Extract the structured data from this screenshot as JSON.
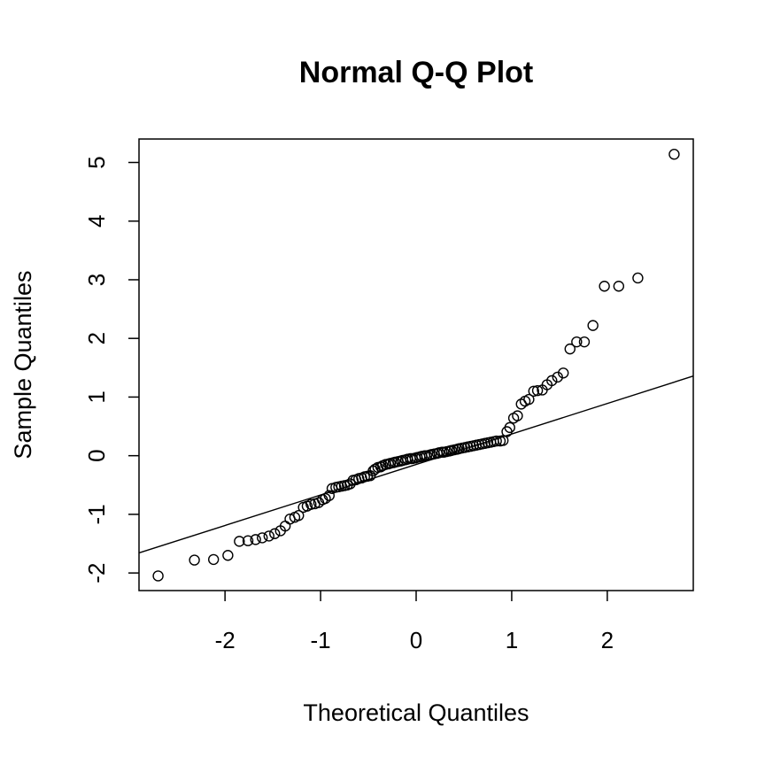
{
  "chart_data": {
    "type": "scatter",
    "title": "Normal Q-Q Plot",
    "xlabel": "Theoretical Quantiles",
    "ylabel": "Sample Quantiles",
    "xlim": [
      -2.9,
      2.9
    ],
    "ylim": [
      -2.3,
      5.4
    ],
    "xticks": [
      -2,
      -1,
      0,
      1,
      2
    ],
    "xtick_labels": [
      "-2",
      "-1",
      "0",
      "1",
      "2"
    ],
    "yticks": [
      -2,
      -1,
      0,
      1,
      2,
      3,
      4,
      5
    ],
    "ytick_labels": [
      "-2",
      "-1",
      "0",
      "1",
      "2",
      "3",
      "4",
      "5"
    ],
    "grid": false,
    "reference_line": {
      "slope": 0.52,
      "intercept": -0.15
    },
    "points": {
      "x": [
        -2.7,
        -2.32,
        -2.12,
        -1.97,
        -1.85,
        -1.76,
        -1.68,
        -1.61,
        -1.54,
        -1.48,
        -1.42,
        -1.37,
        -1.32,
        -1.27,
        -1.23,
        -1.18,
        -1.14,
        -1.1,
        -1.06,
        -1.02,
        -0.98,
        -0.95,
        -0.91,
        -0.88,
        -0.84,
        -0.81,
        -0.78,
        -0.75,
        -0.72,
        -0.69,
        -0.66,
        -0.63,
        -0.6,
        -0.57,
        -0.54,
        -0.51,
        -0.48,
        -0.45,
        -0.43,
        -0.4,
        -0.37,
        -0.35,
        -0.32,
        -0.29,
        -0.27,
        -0.24,
        -0.22,
        -0.19,
        -0.16,
        -0.14,
        -0.11,
        -0.09,
        -0.06,
        -0.04,
        -0.01,
        0.01,
        0.04,
        0.06,
        0.09,
        0.11,
        0.14,
        0.16,
        0.19,
        0.22,
        0.24,
        0.27,
        0.29,
        0.32,
        0.35,
        0.37,
        0.4,
        0.43,
        0.45,
        0.48,
        0.51,
        0.54,
        0.57,
        0.6,
        0.63,
        0.66,
        0.69,
        0.72,
        0.75,
        0.78,
        0.81,
        0.84,
        0.88,
        0.91,
        0.95,
        0.98,
        1.02,
        1.06,
        1.1,
        1.14,
        1.18,
        1.23,
        1.27,
        1.32,
        1.37,
        1.42,
        1.48,
        1.54,
        1.61,
        1.68,
        1.76,
        1.85,
        1.97,
        2.12,
        2.32,
        2.7
      ],
      "y": [
        -2.05,
        -1.78,
        -1.77,
        -1.7,
        -1.46,
        -1.45,
        -1.43,
        -1.4,
        -1.37,
        -1.33,
        -1.28,
        -1.2,
        -1.08,
        -1.05,
        -1.02,
        -0.88,
        -0.86,
        -0.83,
        -0.82,
        -0.8,
        -0.75,
        -0.73,
        -0.68,
        -0.56,
        -0.54,
        -0.53,
        -0.52,
        -0.51,
        -0.5,
        -0.48,
        -0.42,
        -0.41,
        -0.39,
        -0.38,
        -0.36,
        -0.35,
        -0.34,
        -0.26,
        -0.23,
        -0.2,
        -0.19,
        -0.17,
        -0.15,
        -0.14,
        -0.13,
        -0.12,
        -0.11,
        -0.1,
        -0.09,
        -0.08,
        -0.07,
        -0.06,
        -0.05,
        -0.05,
        -0.04,
        -0.03,
        -0.02,
        -0.01,
        0.0,
        0.0,
        0.01,
        0.02,
        0.03,
        0.04,
        0.05,
        0.06,
        0.06,
        0.07,
        0.08,
        0.09,
        0.1,
        0.11,
        0.12,
        0.13,
        0.14,
        0.15,
        0.16,
        0.17,
        0.18,
        0.19,
        0.2,
        0.21,
        0.22,
        0.23,
        0.24,
        0.25,
        0.25,
        0.26,
        0.41,
        0.48,
        0.64,
        0.68,
        0.88,
        0.93,
        0.96,
        1.1,
        1.11,
        1.12,
        1.21,
        1.28,
        1.34,
        1.41,
        1.82,
        1.94,
        1.94,
        2.22,
        2.89,
        2.89,
        3.03,
        5.14
      ]
    }
  }
}
